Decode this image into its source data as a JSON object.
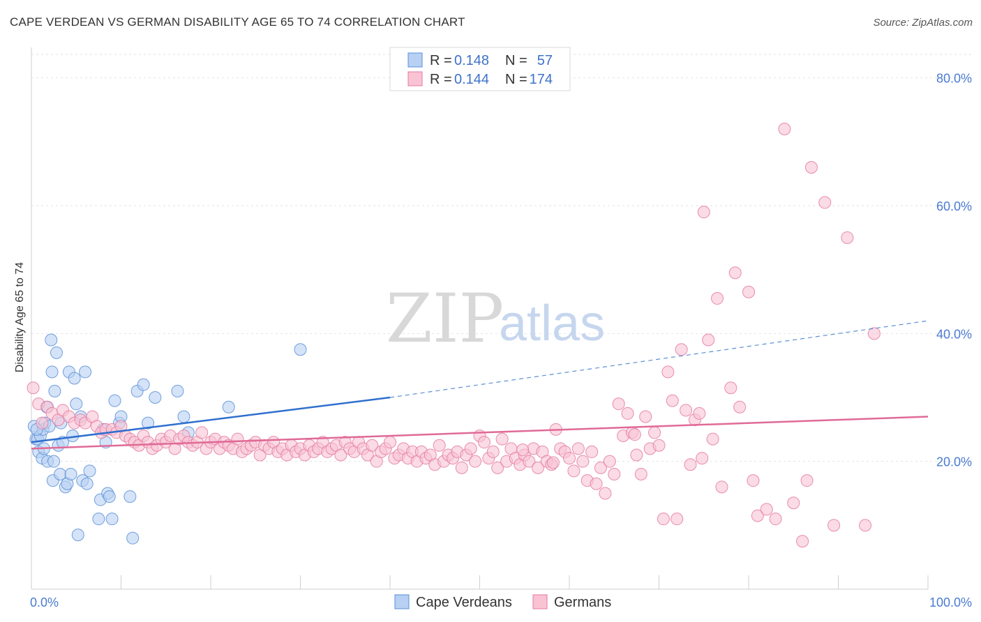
{
  "title": "CAPE VERDEAN VS GERMAN DISABILITY AGE 65 TO 74 CORRELATION CHART",
  "source": "Source: ZipAtlas.com",
  "watermark": {
    "zip": "ZIP",
    "atlas": "atlas"
  },
  "legend_stats": [
    {
      "r_label": "R = ",
      "r_value": "0.148",
      "n_label": "N = ",
      "n_value": "57",
      "color": "#5b8fd6",
      "fill": "#b7d0f3"
    },
    {
      "r_label": "R = ",
      "r_value": "0.144",
      "n_label": "N = ",
      "n_value": "174",
      "color": "#e47aa0",
      "fill": "#f9c3d4"
    }
  ],
  "chart_data": {
    "type": "scatter",
    "title": "CAPE VERDEAN VS GERMAN DISABILITY AGE 65 TO 74 CORRELATION CHART",
    "xlabel": "",
    "ylabel": "Disability Age 65 to 74",
    "xlim": [
      0,
      100
    ],
    "ylim": [
      0,
      84
    ],
    "x_ticks": [
      "0.0%",
      "100.0%"
    ],
    "y_ticks": [
      {
        "value": 20,
        "label": "20.0%"
      },
      {
        "value": 40,
        "label": "40.0%"
      },
      {
        "value": 60,
        "label": "60.0%"
      },
      {
        "value": 80,
        "label": "80.0%"
      }
    ],
    "grid": true,
    "legend_position": "bottom",
    "series": [
      {
        "name": "Cape Verdeans",
        "color": "#5b8fd6",
        "fill": "#b7d0f3",
        "trend": {
          "x0": 0,
          "y0": 23.0,
          "x1": 40,
          "y1": 30.0,
          "dash_to": 100,
          "dash_y": 42.0
        },
        "points": [
          [
            0.3,
            25.5
          ],
          [
            0.5,
            23.5
          ],
          [
            0.7,
            23.5
          ],
          [
            0.8,
            21.5
          ],
          [
            1.0,
            24.0
          ],
          [
            1.2,
            20.5
          ],
          [
            1.3,
            25.0
          ],
          [
            1.5,
            26.0
          ],
          [
            1.7,
            28.5
          ],
          [
            1.8,
            20.0
          ],
          [
            2.0,
            25.5
          ],
          [
            2.2,
            39.0
          ],
          [
            2.3,
            34.0
          ],
          [
            2.4,
            17.0
          ],
          [
            2.6,
            31.0
          ],
          [
            2.8,
            37.0
          ],
          [
            3.0,
            22.5
          ],
          [
            3.2,
            18.0
          ],
          [
            3.5,
            23.0
          ],
          [
            3.8,
            16.0
          ],
          [
            4.0,
            16.5
          ],
          [
            4.2,
            34.0
          ],
          [
            4.4,
            18.0
          ],
          [
            4.6,
            24.0
          ],
          [
            4.8,
            33.0
          ],
          [
            5.0,
            29.0
          ],
          [
            5.2,
            8.5
          ],
          [
            5.5,
            27.0
          ],
          [
            5.7,
            17.0
          ],
          [
            6.0,
            34.0
          ],
          [
            6.2,
            16.5
          ],
          [
            6.5,
            18.5
          ],
          [
            7.5,
            11.0
          ],
          [
            7.7,
            14.0
          ],
          [
            8.0,
            25.0
          ],
          [
            8.3,
            23.0
          ],
          [
            8.5,
            15.0
          ],
          [
            8.7,
            14.5
          ],
          [
            9.0,
            11.0
          ],
          [
            9.3,
            29.5
          ],
          [
            9.8,
            26.0
          ],
          [
            10.0,
            27.0
          ],
          [
            11.0,
            14.5
          ],
          [
            11.3,
            8.0
          ],
          [
            11.8,
            31.0
          ],
          [
            12.5,
            32.0
          ],
          [
            13.0,
            26.0
          ],
          [
            13.8,
            30.0
          ],
          [
            16.3,
            31.0
          ],
          [
            17.0,
            27.0
          ],
          [
            17.5,
            24.5
          ],
          [
            22.0,
            28.5
          ],
          [
            30.0,
            37.5
          ],
          [
            0.6,
            25.0
          ],
          [
            1.4,
            22.0
          ],
          [
            2.5,
            20.0
          ],
          [
            3.3,
            26.0
          ]
        ]
      },
      {
        "name": "Germans",
        "color": "#e47aa0",
        "fill": "#f9c3d4",
        "trend": {
          "x0": 0,
          "y0": 22.0,
          "x1": 100,
          "y1": 27.0
        },
        "points": [
          [
            0.2,
            31.5
          ],
          [
            0.8,
            29.0
          ],
          [
            1.2,
            26.0
          ],
          [
            1.8,
            28.5
          ],
          [
            2.3,
            27.5
          ],
          [
            3.0,
            26.5
          ],
          [
            3.5,
            28.0
          ],
          [
            4.2,
            27.0
          ],
          [
            4.8,
            26.0
          ],
          [
            5.5,
            26.5
          ],
          [
            6.0,
            26.0
          ],
          [
            6.8,
            27.0
          ],
          [
            7.3,
            25.5
          ],
          [
            7.8,
            24.5
          ],
          [
            8.3,
            25.0
          ],
          [
            9.0,
            25.0
          ],
          [
            9.5,
            24.5
          ],
          [
            10.0,
            25.5
          ],
          [
            10.5,
            24.0
          ],
          [
            11.0,
            23.5
          ],
          [
            11.5,
            23.0
          ],
          [
            12.0,
            22.5
          ],
          [
            12.5,
            24.0
          ],
          [
            13.0,
            23.0
          ],
          [
            13.5,
            22.0
          ],
          [
            14.0,
            22.5
          ],
          [
            14.5,
            23.5
          ],
          [
            15.0,
            23.0
          ],
          [
            15.5,
            24.0
          ],
          [
            16.0,
            22.0
          ],
          [
            16.5,
            23.5
          ],
          [
            17.0,
            24.0
          ],
          [
            17.5,
            23.0
          ],
          [
            18.0,
            22.5
          ],
          [
            18.5,
            23.0
          ],
          [
            19.0,
            24.5
          ],
          [
            19.5,
            22.0
          ],
          [
            20.0,
            23.0
          ],
          [
            20.5,
            23.5
          ],
          [
            21.0,
            22.0
          ],
          [
            21.5,
            23.0
          ],
          [
            22.0,
            22.5
          ],
          [
            22.5,
            22.0
          ],
          [
            23.0,
            23.5
          ],
          [
            23.5,
            21.5
          ],
          [
            24.0,
            22.0
          ],
          [
            24.5,
            22.5
          ],
          [
            25.0,
            23.0
          ],
          [
            25.5,
            21.0
          ],
          [
            26.0,
            22.5
          ],
          [
            26.5,
            22.0
          ],
          [
            27.0,
            23.0
          ],
          [
            27.5,
            21.5
          ],
          [
            28.0,
            22.0
          ],
          [
            28.5,
            21.0
          ],
          [
            29.0,
            22.5
          ],
          [
            29.5,
            21.5
          ],
          [
            30.0,
            22.0
          ],
          [
            30.5,
            21.0
          ],
          [
            31.0,
            22.5
          ],
          [
            31.5,
            21.5
          ],
          [
            32.0,
            22.0
          ],
          [
            32.5,
            23.0
          ],
          [
            33.0,
            21.5
          ],
          [
            33.5,
            22.0
          ],
          [
            34.0,
            22.5
          ],
          [
            34.5,
            21.0
          ],
          [
            35.0,
            23.0
          ],
          [
            35.5,
            22.0
          ],
          [
            36.0,
            21.5
          ],
          [
            36.5,
            23.0
          ],
          [
            37.0,
            22.0
          ],
          [
            37.5,
            21.0
          ],
          [
            38.0,
            22.5
          ],
          [
            38.5,
            20.0
          ],
          [
            39.0,
            21.5
          ],
          [
            39.5,
            22.0
          ],
          [
            40.0,
            23.0
          ],
          [
            40.5,
            20.5
          ],
          [
            41.0,
            21.0
          ],
          [
            41.5,
            22.0
          ],
          [
            42.0,
            20.5
          ],
          [
            42.5,
            21.5
          ],
          [
            43.0,
            20.0
          ],
          [
            43.5,
            21.5
          ],
          [
            44.0,
            20.5
          ],
          [
            44.5,
            21.0
          ],
          [
            45.0,
            19.5
          ],
          [
            45.5,
            22.5
          ],
          [
            46.0,
            20.0
          ],
          [
            46.5,
            21.0
          ],
          [
            47.0,
            20.5
          ],
          [
            47.5,
            21.5
          ],
          [
            48.0,
            19.0
          ],
          [
            48.5,
            21.0
          ],
          [
            49.0,
            22.0
          ],
          [
            49.5,
            20.0
          ],
          [
            50.0,
            24.0
          ],
          [
            50.5,
            23.0
          ],
          [
            51.0,
            20.5
          ],
          [
            51.5,
            21.5
          ],
          [
            52.0,
            19.0
          ],
          [
            52.5,
            23.5
          ],
          [
            53.0,
            20.0
          ],
          [
            53.5,
            22.0
          ],
          [
            54.0,
            20.5
          ],
          [
            54.5,
            19.5
          ],
          [
            55.0,
            21.0
          ],
          [
            55.5,
            20.0
          ],
          [
            56.0,
            22.0
          ],
          [
            56.5,
            19.0
          ],
          [
            57.0,
            21.5
          ],
          [
            57.5,
            20.0
          ],
          [
            58.0,
            19.5
          ],
          [
            58.5,
            25.0
          ],
          [
            59.0,
            22.0
          ],
          [
            59.5,
            21.5
          ],
          [
            60.0,
            20.5
          ],
          [
            60.5,
            18.5
          ],
          [
            61.0,
            22.0
          ],
          [
            61.5,
            20.0
          ],
          [
            62.0,
            17.0
          ],
          [
            62.5,
            21.5
          ],
          [
            63.0,
            16.5
          ],
          [
            63.5,
            19.0
          ],
          [
            64.0,
            15.0
          ],
          [
            64.5,
            20.0
          ],
          [
            65.0,
            18.0
          ],
          [
            65.5,
            29.0
          ],
          [
            66.0,
            24.0
          ],
          [
            66.5,
            27.5
          ],
          [
            67.0,
            24.5
          ],
          [
            67.5,
            21.0
          ],
          [
            68.0,
            18.0
          ],
          [
            68.5,
            27.0
          ],
          [
            69.0,
            22.0
          ],
          [
            69.5,
            24.5
          ],
          [
            70.0,
            22.5
          ],
          [
            70.5,
            11.0
          ],
          [
            71.0,
            34.0
          ],
          [
            71.5,
            29.5
          ],
          [
            72.0,
            11.0
          ],
          [
            72.5,
            37.5
          ],
          [
            73.0,
            28.0
          ],
          [
            73.5,
            19.5
          ],
          [
            74.0,
            26.5
          ],
          [
            74.5,
            27.5
          ],
          [
            75.0,
            59.0
          ],
          [
            75.5,
            39.0
          ],
          [
            76.0,
            23.5
          ],
          [
            76.5,
            45.5
          ],
          [
            77.0,
            16.0
          ],
          [
            78.0,
            31.5
          ],
          [
            78.5,
            49.5
          ],
          [
            79.0,
            28.5
          ],
          [
            80.0,
            46.5
          ],
          [
            81.0,
            11.5
          ],
          [
            82.0,
            12.5
          ],
          [
            83.0,
            11.0
          ],
          [
            84.0,
            72.0
          ],
          [
            85.0,
            13.5
          ],
          [
            86.0,
            7.5
          ],
          [
            86.5,
            17.0
          ],
          [
            87.0,
            66.0
          ],
          [
            88.5,
            60.5
          ],
          [
            89.5,
            10.0
          ],
          [
            91.0,
            55.0
          ],
          [
            93.0,
            10.0
          ],
          [
            94.0,
            40.0
          ],
          [
            67.3,
            24.2
          ],
          [
            58.2,
            19.8
          ],
          [
            54.8,
            21.8
          ],
          [
            74.8,
            20.5
          ],
          [
            80.5,
            17.0
          ]
        ]
      }
    ]
  }
}
